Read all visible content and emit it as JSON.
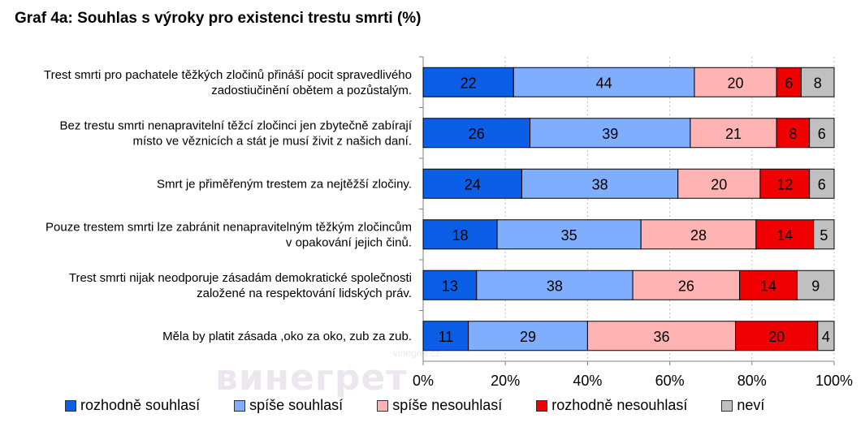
{
  "title": "Graf 4a: Souhlas s výroky pro existenci trestu smrti (%)",
  "watermark": "винегрет",
  "watermark_small": "vinegret.cz",
  "colors": {
    "rozhodne_souhlasi": "#0A5FE6",
    "spise_souhlasi": "#80AEFF",
    "spise_nesouhlasi": "#FFB3B3",
    "rozhodne_nesouhlasi": "#F00000",
    "nevi": "#C0C0C0"
  },
  "chart_data": {
    "type": "bar",
    "orientation": "horizontal",
    "stacked": true,
    "categories": [
      [
        "Trest smrti pro pachatele těžkých zločinů přináší pocit spravedlivého",
        "zadostiučinění obětem a pozůstalým."
      ],
      [
        "Bez trestu smrti nenapravitelní těžcí zločinci jen zbytečně zabírají",
        "místo ve věznicích a stát je musí živit z našich daní."
      ],
      [
        "Smrt je přiměřeným trestem za nejtěžší zločiny."
      ],
      [
        "Pouze trestem smrti lze zabránit nenapravitelným těžkým zločincům",
        "v opakování jejich činů."
      ],
      [
        "Trest smrti nijak neodporuje zásadám demokratické společnosti",
        "založené na respektování lidských práv."
      ],
      [
        "Měla by platit zásada ,oko za oko, zub za zub."
      ]
    ],
    "series": [
      {
        "name": "rozhodně souhlasí",
        "color": "#0A5FE6",
        "values": [
          22,
          26,
          24,
          18,
          13,
          11
        ]
      },
      {
        "name": "spíše souhlasí",
        "color": "#80AEFF",
        "values": [
          44,
          39,
          38,
          35,
          38,
          29
        ]
      },
      {
        "name": "spíše nesouhlasí",
        "color": "#FFB3B3",
        "values": [
          20,
          21,
          20,
          28,
          26,
          36
        ]
      },
      {
        "name": "rozhodně nesouhlasí",
        "color": "#F00000",
        "values": [
          6,
          8,
          12,
          14,
          14,
          20
        ]
      },
      {
        "name": "neví",
        "color": "#C0C0C0",
        "values": [
          8,
          6,
          6,
          5,
          9,
          4
        ]
      }
    ],
    "x_ticks": [
      "0%",
      "20%",
      "40%",
      "60%",
      "80%",
      "100%"
    ],
    "xlim": [
      0,
      100
    ],
    "grid": true,
    "legend": "bottom",
    "data_labels": true
  }
}
